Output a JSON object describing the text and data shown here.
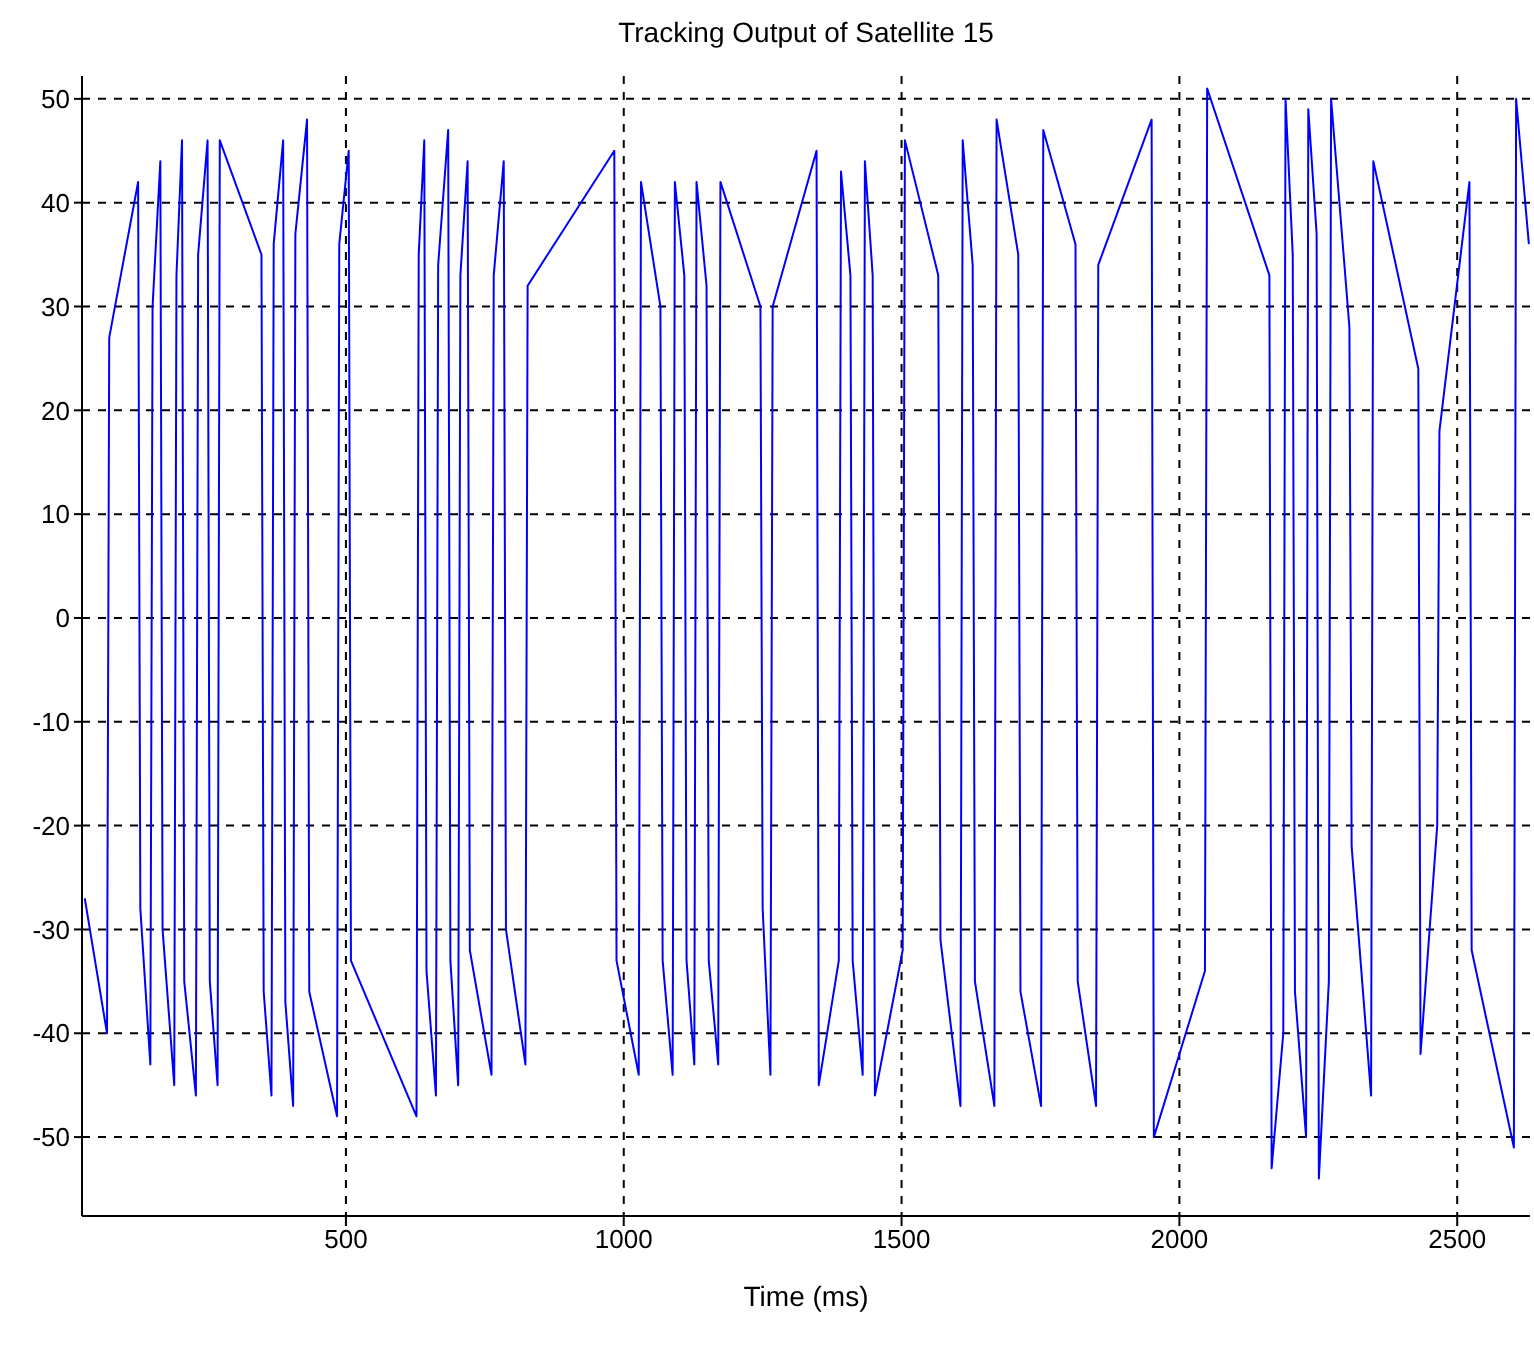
{
  "chart_data": {
    "type": "line",
    "title": "Tracking Output of Satellite 15",
    "xlabel": "Time (ms)",
    "x": [
      30,
      70,
      74,
      126,
      130,
      148,
      152,
      166,
      170,
      191,
      195,
      205,
      209,
      230,
      234,
      251,
      255,
      269,
      273,
      348,
      352,
      366,
      370,
      387,
      391,
      405,
      409,
      430,
      434,
      484,
      488,
      505,
      509,
      627,
      631,
      641,
      645,
      662,
      666,
      684,
      688,
      702,
      706,
      719,
      723,
      762,
      766,
      784,
      788,
      823,
      827,
      983,
      987,
      1027,
      1031,
      1066,
      1070,
      1088,
      1092,
      1109,
      1113,
      1127,
      1131,
      1149,
      1153,
      1170,
      1174,
      1246,
      1250,
      1264,
      1268,
      1347,
      1351,
      1387,
      1391,
      1408,
      1412,
      1430,
      1434,
      1448,
      1452,
      1502,
      1506,
      1566,
      1570,
      1606,
      1610,
      1628,
      1632,
      1667,
      1671,
      1710,
      1714,
      1751,
      1755,
      1813,
      1817,
      1850,
      1854,
      1950,
      1954,
      2046,
      2050,
      2162,
      2166,
      2187,
      2191,
      2204,
      2208,
      2228,
      2232,
      2247,
      2251,
      2269,
      2273,
      2306,
      2310,
      2345,
      2349,
      2430,
      2434,
      2464,
      2468,
      2522,
      2526,
      2602,
      2606,
      2629
    ],
    "series": [
      {
        "color": "#0000ff",
        "values": [
          -27,
          -40,
          27,
          42,
          -28,
          -43,
          30,
          44,
          -30,
          -45,
          33,
          46,
          -35,
          -46,
          35,
          46,
          -35,
          -45,
          46,
          35,
          -36,
          -46,
          36,
          46,
          -37,
          -47,
          37,
          48,
          -36,
          -48,
          36,
          45,
          -33,
          -48,
          35,
          46,
          -34,
          -46,
          34,
          47,
          -33,
          -45,
          33,
          44,
          -32,
          -44,
          33,
          44,
          -30,
          -43,
          32,
          45,
          -33,
          -44,
          42,
          30,
          -33,
          -44,
          42,
          33,
          -33,
          -43,
          42,
          32,
          -33,
          -43,
          42,
          30,
          -28,
          -44,
          30,
          45,
          -45,
          -33,
          43,
          33,
          -33,
          -44,
          44,
          33,
          -46,
          -32,
          46,
          33,
          -31,
          -47,
          46,
          34,
          -35,
          -47,
          48,
          35,
          -36,
          -47,
          47,
          36,
          -35,
          -47,
          34,
          48,
          -50,
          -34,
          51,
          33,
          -53,
          -40,
          50,
          35,
          -36,
          -50,
          49,
          37,
          -54,
          -35,
          50,
          28,
          -22,
          -46,
          44,
          24,
          -42,
          -20,
          18,
          42,
          -32,
          -51,
          50,
          36
        ]
      }
    ],
    "xlim": [
      25,
      2631
    ],
    "xticks": [
      500,
      1000,
      1500,
      2000,
      2500
    ],
    "ylim": [
      -57.6,
      52.2
    ],
    "yticks": [
      -50,
      -40,
      -30,
      -20,
      -10,
      0,
      10,
      20,
      30,
      40,
      50
    ],
    "grid": true,
    "marker": "none",
    "line_style": "solid"
  }
}
